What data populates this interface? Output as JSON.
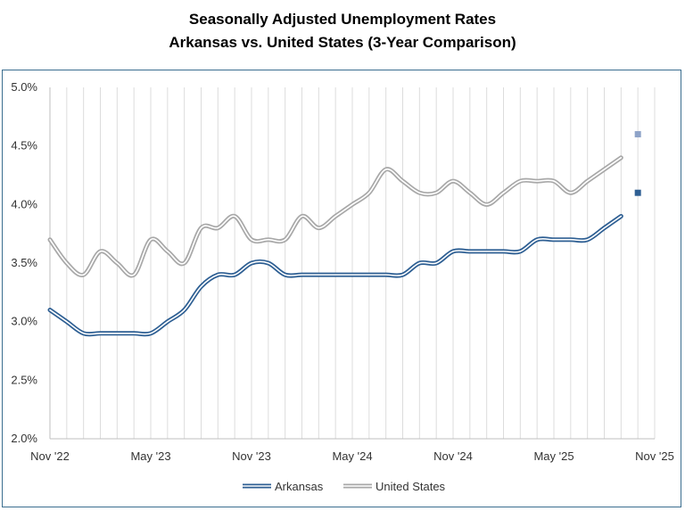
{
  "title_line1": "Seasonally Adjusted Unemployment Rates",
  "title_line2": "Arkansas vs. United States (3-Year Comparison)",
  "colors": {
    "arkansas": "#2e5f93",
    "united_states": "#a8a8a8",
    "ar_marker": "#2e5f93",
    "us_marker": "#8ea3c8",
    "grid": "#dcdcdc",
    "frame": "#3b6e8f"
  },
  "chart_data": {
    "type": "line",
    "title": "Seasonally Adjusted Unemployment Rates Arkansas vs. United States (3-Year Comparison)",
    "xlabel": "",
    "ylabel": "",
    "ylim": [
      2.0,
      5.0
    ],
    "y_ticks": [
      "2.0%",
      "2.5%",
      "3.0%",
      "3.5%",
      "4.0%",
      "4.5%",
      "5.0%"
    ],
    "y_tick_values": [
      2.0,
      2.5,
      3.0,
      3.5,
      4.0,
      4.5,
      5.0
    ],
    "x_ticks": [
      "Nov '22",
      "May '23",
      "Nov '23",
      "May '24",
      "Nov '24",
      "May '25",
      "Nov '25"
    ],
    "x_tick_month_index": [
      0,
      6,
      12,
      18,
      24,
      30,
      36
    ],
    "grid": "vertical-monthly",
    "legend_position": "bottom",
    "x": [
      "2022-11",
      "2022-12",
      "2023-01",
      "2023-02",
      "2023-03",
      "2023-04",
      "2023-05",
      "2023-06",
      "2023-07",
      "2023-08",
      "2023-09",
      "2023-10",
      "2023-11",
      "2023-12",
      "2024-01",
      "2024-02",
      "2024-03",
      "2024-04",
      "2024-05",
      "2024-06",
      "2024-07",
      "2024-08",
      "2024-09",
      "2024-10",
      "2024-11",
      "2024-12",
      "2025-01",
      "2025-02",
      "2025-03",
      "2025-04",
      "2025-05",
      "2025-06",
      "2025-07",
      "2025-08",
      "2025-09"
    ],
    "series": [
      {
        "name": "Arkansas",
        "values": [
          3.1,
          3.0,
          2.9,
          2.9,
          2.9,
          2.9,
          2.9,
          3.0,
          3.1,
          3.3,
          3.4,
          3.4,
          3.5,
          3.5,
          3.4,
          3.4,
          3.4,
          3.4,
          3.4,
          3.4,
          3.4,
          3.4,
          3.5,
          3.5,
          3.6,
          3.6,
          3.6,
          3.6,
          3.6,
          3.7,
          3.7,
          3.7,
          3.7,
          3.8,
          3.9
        ]
      },
      {
        "name": "United States",
        "values": [
          3.7,
          3.5,
          3.4,
          3.6,
          3.5,
          3.4,
          3.7,
          3.6,
          3.5,
          3.8,
          3.8,
          3.9,
          3.7,
          3.7,
          3.7,
          3.9,
          3.8,
          3.9,
          4.0,
          4.1,
          4.3,
          4.2,
          4.1,
          4.1,
          4.2,
          4.1,
          4.0,
          4.1,
          4.2,
          4.2,
          4.2,
          4.1,
          4.2,
          4.3,
          4.4
        ]
      }
    ],
    "markers": [
      {
        "series": "United States",
        "x": "2025-10",
        "value": 4.6
      },
      {
        "series": "Arkansas",
        "x": "2025-10",
        "value": 4.1
      }
    ]
  }
}
